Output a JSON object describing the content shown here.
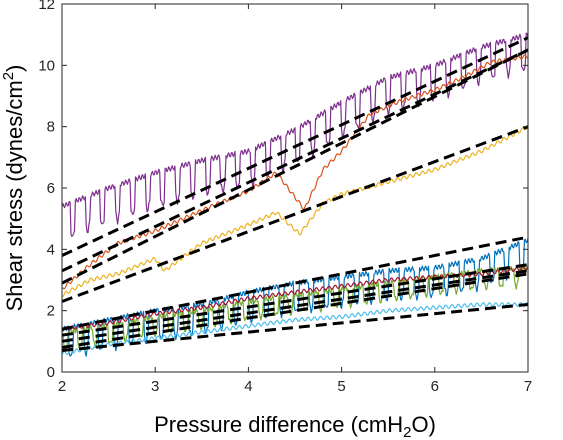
{
  "chart_data": {
    "type": "line",
    "xlabel": {
      "pre": "Pressure difference (cmH",
      "sub": "2",
      "post": "O)"
    },
    "ylabel": {
      "pre": "Shear stress (dynes/cm",
      "sup": "2",
      "post": ")"
    },
    "xlim": [
      2,
      7
    ],
    "ylim": [
      0,
      12
    ],
    "xticks": [
      "2",
      "3",
      "4",
      "5",
      "6",
      "7"
    ],
    "yticks": [
      "0",
      "2",
      "4",
      "6",
      "8",
      "10",
      "12"
    ],
    "grid": false,
    "legend": "none",
    "series": [
      {
        "color": "#7E2F8E",
        "spiky": true,
        "amp": 1.2,
        "x": [
          2,
          2.5,
          3,
          3.5,
          4,
          4.5,
          5,
          5.5,
          6,
          6.5,
          7
        ],
        "y": [
          5.4,
          6.0,
          6.5,
          6.9,
          7.2,
          7.9,
          8.8,
          9.6,
          10.0,
          10.6,
          11.0
        ]
      },
      {
        "color": "#D95319",
        "spiky": false,
        "amp": 0,
        "x": [
          2,
          2.3,
          2.6,
          3,
          3.3,
          3.6,
          4,
          4.3,
          4.6,
          4.8,
          5,
          5.3,
          5.6,
          6,
          6.3,
          6.6,
          7
        ],
        "y": [
          2.7,
          3.5,
          4.2,
          4.6,
          5.0,
          5.4,
          5.9,
          6.5,
          5.3,
          6.6,
          7.2,
          8.4,
          8.8,
          9.2,
          9.6,
          10.1,
          10.3
        ]
      },
      {
        "color": "#EDB120",
        "spiky": false,
        "amp": 0,
        "x": [
          2,
          2.3,
          2.6,
          3,
          3.1,
          3.5,
          4,
          4.3,
          4.55,
          4.8,
          5,
          5.5,
          6,
          6.5,
          7
        ],
        "y": [
          2.5,
          3.0,
          3.2,
          3.7,
          3.3,
          4.2,
          4.8,
          5.2,
          4.5,
          5.5,
          5.8,
          6.2,
          6.6,
          7.2,
          8.0
        ]
      },
      {
        "color": "#0072BD",
        "spiky": true,
        "amp": 1.0,
        "x": [
          2,
          2.5,
          3,
          3.5,
          4,
          4.5,
          5,
          5.5,
          6,
          6.5,
          7
        ],
        "y": [
          1.4,
          1.7,
          2.0,
          2.2,
          2.6,
          2.9,
          3.1,
          3.3,
          3.4,
          3.7,
          4.3
        ]
      },
      {
        "color": "#77AC30",
        "spiky": true,
        "amp": 0.6,
        "x": [
          2,
          2.5,
          3,
          3.5,
          4,
          4.5,
          5,
          5.5,
          6,
          6.5,
          7
        ],
        "y": [
          1.3,
          1.5,
          1.8,
          2.0,
          2.3,
          2.5,
          2.7,
          2.9,
          3.1,
          3.3,
          3.4
        ]
      },
      {
        "color": "#A2142F",
        "spiky": false,
        "amp": 0,
        "x": [
          2,
          2.5,
          3,
          3.5,
          4,
          4.5,
          5,
          5.5,
          6,
          6.5,
          7
        ],
        "y": [
          1.4,
          1.6,
          1.9,
          2.1,
          2.4,
          2.6,
          2.8,
          3.0,
          3.1,
          3.2,
          3.4
        ]
      },
      {
        "color": "#4DBEEE",
        "spiky": false,
        "amp": 0,
        "x": [
          2,
          2.5,
          3,
          3.5,
          4,
          4.5,
          5,
          5.5,
          6,
          6.5,
          7
        ],
        "y": [
          0.6,
          0.9,
          1.1,
          1.3,
          1.5,
          1.7,
          1.8,
          2.0,
          2.1,
          2.2,
          2.2
        ]
      }
    ],
    "fit_lines": [
      {
        "x": [
          2,
          7
        ],
        "y": [
          3.8,
          10.9
        ]
      },
      {
        "x": [
          2,
          7
        ],
        "y": [
          3.3,
          10.5
        ]
      },
      {
        "x": [
          2,
          7
        ],
        "y": [
          2.9,
          10.5
        ]
      },
      {
        "x": [
          2,
          7
        ],
        "y": [
          2.3,
          8.0
        ]
      },
      {
        "x": [
          2,
          7
        ],
        "y": [
          1.4,
          4.4
        ]
      },
      {
        "x": [
          2,
          7
        ],
        "y": [
          1.2,
          3.5
        ]
      },
      {
        "x": [
          2,
          7
        ],
        "y": [
          1.0,
          3.3
        ]
      },
      {
        "x": [
          2,
          7
        ],
        "y": [
          0.8,
          3.2
        ]
      },
      {
        "x": [
          2,
          7
        ],
        "y": [
          0.7,
          2.2
        ]
      }
    ]
  }
}
